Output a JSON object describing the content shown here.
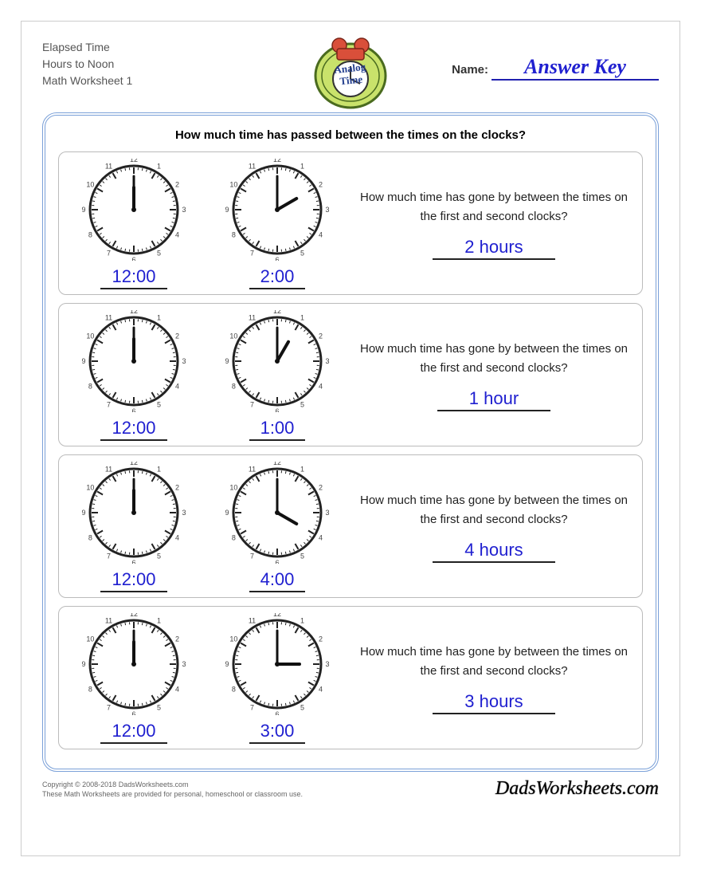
{
  "header": {
    "line1": "Elapsed Time",
    "line2": "Hours to Noon",
    "line3": "Math Worksheet 1",
    "badge_text": "Analog Time",
    "name_label": "Name:",
    "answer_key": "Answer Key"
  },
  "instruction": "How much time has passed between the times on the clocks?",
  "question_text": "How much time has gone by between the times on the first and second clocks?",
  "problems": [
    {
      "clock1": {
        "h": 12,
        "m": 0
      },
      "time1": "12:00",
      "clock2": {
        "h": 2,
        "m": 0
      },
      "time2": "2:00",
      "answer": "2 hours"
    },
    {
      "clock1": {
        "h": 12,
        "m": 0
      },
      "time1": "12:00",
      "clock2": {
        "h": 1,
        "m": 0
      },
      "time2": "1:00",
      "answer": "1 hour"
    },
    {
      "clock1": {
        "h": 12,
        "m": 0
      },
      "time1": "12:00",
      "clock2": {
        "h": 4,
        "m": 0
      },
      "time2": "4:00",
      "answer": "4 hours"
    },
    {
      "clock1": {
        "h": 12,
        "m": 0
      },
      "time1": "12:00",
      "clock2": {
        "h": 3,
        "m": 0
      },
      "time2": "3:00",
      "answer": "3 hours"
    }
  ],
  "clock_style": {
    "radius": 55,
    "face_fill": "#ffffff",
    "rim_color": "#222222",
    "rim_width": 3,
    "tick_color": "#222222",
    "number_color": "#444444",
    "number_fontsize": 9,
    "hour_hand_len": 28,
    "minute_hand_len": 42,
    "hand_color": "#111111"
  },
  "colors": {
    "answer_blue": "#2020d0",
    "frame_blue": "#7aa0d8"
  },
  "footer": {
    "copyright": "Copyright © 2008-2018 DadsWorksheets.com",
    "notice": "These Math Worksheets are provided for personal, homeschool or classroom use.",
    "brand": "DadsWorksheets.com"
  }
}
